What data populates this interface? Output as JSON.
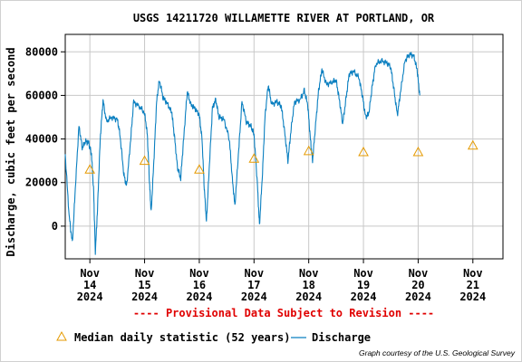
{
  "chart_data": {
    "type": "line",
    "title": "USGS 14211720 WILLAMETTE RIVER AT PORTLAND, OR",
    "ylabel": "Discharge, cubic feet per second",
    "xlabel": "",
    "ylim": [
      -15000,
      88000
    ],
    "y_ticks": [
      0,
      20000,
      40000,
      60000,
      80000
    ],
    "y_tick_labels": [
      "0",
      "20000",
      "40000",
      "60000",
      "80000"
    ],
    "x_range_days": [
      13.55,
      21.55
    ],
    "x_ticks": [
      {
        "day": 14,
        "lines": [
          "Nov",
          "14",
          "2024"
        ]
      },
      {
        "day": 15,
        "lines": [
          "Nov",
          "15",
          "2024"
        ]
      },
      {
        "day": 16,
        "lines": [
          "Nov",
          "16",
          "2024"
        ]
      },
      {
        "day": 17,
        "lines": [
          "Nov",
          "17",
          "2024"
        ]
      },
      {
        "day": 18,
        "lines": [
          "Nov",
          "18",
          "2024"
        ]
      },
      {
        "day": 19,
        "lines": [
          "Nov",
          "19",
          "2024"
        ]
      },
      {
        "day": 20,
        "lines": [
          "Nov",
          "20",
          "2024"
        ]
      },
      {
        "day": 21,
        "lines": [
          "Nov",
          "21",
          "2024"
        ]
      }
    ],
    "grid": true,
    "revision_note": "---- Provisional Data Subject to Revision ----",
    "series": [
      {
        "name": "Discharge",
        "color": "#0a7fc0",
        "style": "line",
        "points": [
          [
            13.55,
            33000
          ],
          [
            13.62,
            5000
          ],
          [
            13.68,
            -8000
          ],
          [
            13.74,
            20000
          ],
          [
            13.8,
            46000
          ],
          [
            13.86,
            36000
          ],
          [
            13.92,
            39000
          ],
          [
            13.98,
            38000
          ],
          [
            14.03,
            33000
          ],
          [
            14.07,
            15000
          ],
          [
            14.1,
            -12000
          ],
          [
            14.14,
            8000
          ],
          [
            14.19,
            40000
          ],
          [
            14.24,
            58000
          ],
          [
            14.3,
            48000
          ],
          [
            14.4,
            50000
          ],
          [
            14.5,
            49000
          ],
          [
            14.55,
            42000
          ],
          [
            14.62,
            24000
          ],
          [
            14.67,
            18000
          ],
          [
            14.74,
            38000
          ],
          [
            14.8,
            57000
          ],
          [
            14.9,
            55000
          ],
          [
            15.0,
            52000
          ],
          [
            15.05,
            42000
          ],
          [
            15.09,
            20000
          ],
          [
            15.12,
            6000
          ],
          [
            15.17,
            30000
          ],
          [
            15.22,
            57000
          ],
          [
            15.27,
            67000
          ],
          [
            15.34,
            59000
          ],
          [
            15.42,
            56000
          ],
          [
            15.5,
            52000
          ],
          [
            15.55,
            40000
          ],
          [
            15.6,
            27000
          ],
          [
            15.66,
            22000
          ],
          [
            15.72,
            42000
          ],
          [
            15.78,
            62000
          ],
          [
            15.84,
            56000
          ],
          [
            15.92,
            54000
          ],
          [
            16.0,
            51000
          ],
          [
            16.05,
            40000
          ],
          [
            16.09,
            18000
          ],
          [
            16.13,
            2000
          ],
          [
            16.18,
            26000
          ],
          [
            16.24,
            54000
          ],
          [
            16.3,
            58000
          ],
          [
            16.36,
            50000
          ],
          [
            16.45,
            49000
          ],
          [
            16.55,
            40000
          ],
          [
            16.6,
            23000
          ],
          [
            16.65,
            9000
          ],
          [
            16.72,
            35000
          ],
          [
            16.78,
            57000
          ],
          [
            16.86,
            48000
          ],
          [
            16.94,
            46000
          ],
          [
            17.0,
            42000
          ],
          [
            17.06,
            20000
          ],
          [
            17.1,
            0
          ],
          [
            17.15,
            22000
          ],
          [
            17.2,
            50000
          ],
          [
            17.26,
            65000
          ],
          [
            17.32,
            56000
          ],
          [
            17.42,
            57000
          ],
          [
            17.5,
            55000
          ],
          [
            17.56,
            43000
          ],
          [
            17.62,
            30000
          ],
          [
            17.68,
            45000
          ],
          [
            17.74,
            57000
          ],
          [
            17.84,
            58000
          ],
          [
            17.92,
            62000
          ],
          [
            17.98,
            56000
          ],
          [
            18.03,
            40000
          ],
          [
            18.07,
            30000
          ],
          [
            18.12,
            45000
          ],
          [
            18.18,
            62000
          ],
          [
            18.24,
            72000
          ],
          [
            18.32,
            65000
          ],
          [
            18.42,
            66000
          ],
          [
            18.5,
            67000
          ],
          [
            18.56,
            58000
          ],
          [
            18.62,
            47000
          ],
          [
            18.68,
            58000
          ],
          [
            18.74,
            70000
          ],
          [
            18.82,
            71000
          ],
          [
            18.92,
            68000
          ],
          [
            18.98,
            60000
          ],
          [
            19.04,
            50000
          ],
          [
            19.1,
            52000
          ],
          [
            19.16,
            64000
          ],
          [
            19.22,
            74000
          ],
          [
            19.32,
            76000
          ],
          [
            19.42,
            75000
          ],
          [
            19.5,
            73000
          ],
          [
            19.56,
            62000
          ],
          [
            19.62,
            51000
          ],
          [
            19.68,
            62000
          ],
          [
            19.76,
            76000
          ],
          [
            19.84,
            79000
          ],
          [
            19.92,
            78000
          ],
          [
            19.98,
            72000
          ],
          [
            20.03,
            60000
          ]
        ]
      },
      {
        "name": "Median daily statistic (52 years)",
        "color": "#e59a00",
        "style": "triangle",
        "points": [
          [
            14.0,
            26000
          ],
          [
            15.0,
            30000
          ],
          [
            16.0,
            26000
          ],
          [
            17.0,
            31000
          ],
          [
            18.0,
            34500
          ],
          [
            19.0,
            34000
          ],
          [
            20.0,
            34000
          ],
          [
            21.0,
            37000
          ]
        ]
      }
    ]
  },
  "legend": {
    "median_label": "Median daily statistic (52 years)",
    "discharge_label": "Discharge"
  },
  "credit": "Graph courtesy of the U.S. Geological Survey"
}
